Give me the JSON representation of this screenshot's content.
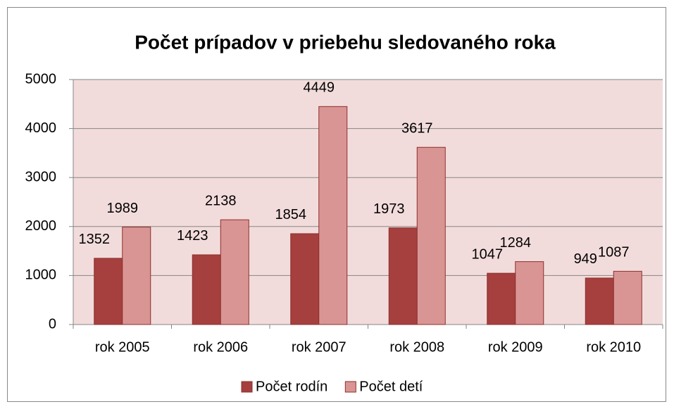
{
  "chart_data": {
    "type": "bar",
    "title": "Počet prípadov v priebehu sledovaného roka",
    "categories": [
      "rok 2005",
      "rok 2006",
      "rok 2007",
      "rok 2008",
      "rok 2009",
      "rok 2010"
    ],
    "series": [
      {
        "name": "Počet rodín",
        "color": "#a5403e",
        "values": [
          1352,
          1423,
          1854,
          1973,
          1047,
          949
        ]
      },
      {
        "name": "Počet detí",
        "color": "#d99594",
        "values": [
          1989,
          2138,
          4449,
          3617,
          1284,
          1087
        ]
      }
    ],
    "ylim": [
      0,
      5000
    ],
    "yticks": [
      0,
      1000,
      2000,
      3000,
      4000,
      5000
    ],
    "grid": true,
    "legend": "bottom",
    "plot_background": "#f2dcdb"
  }
}
